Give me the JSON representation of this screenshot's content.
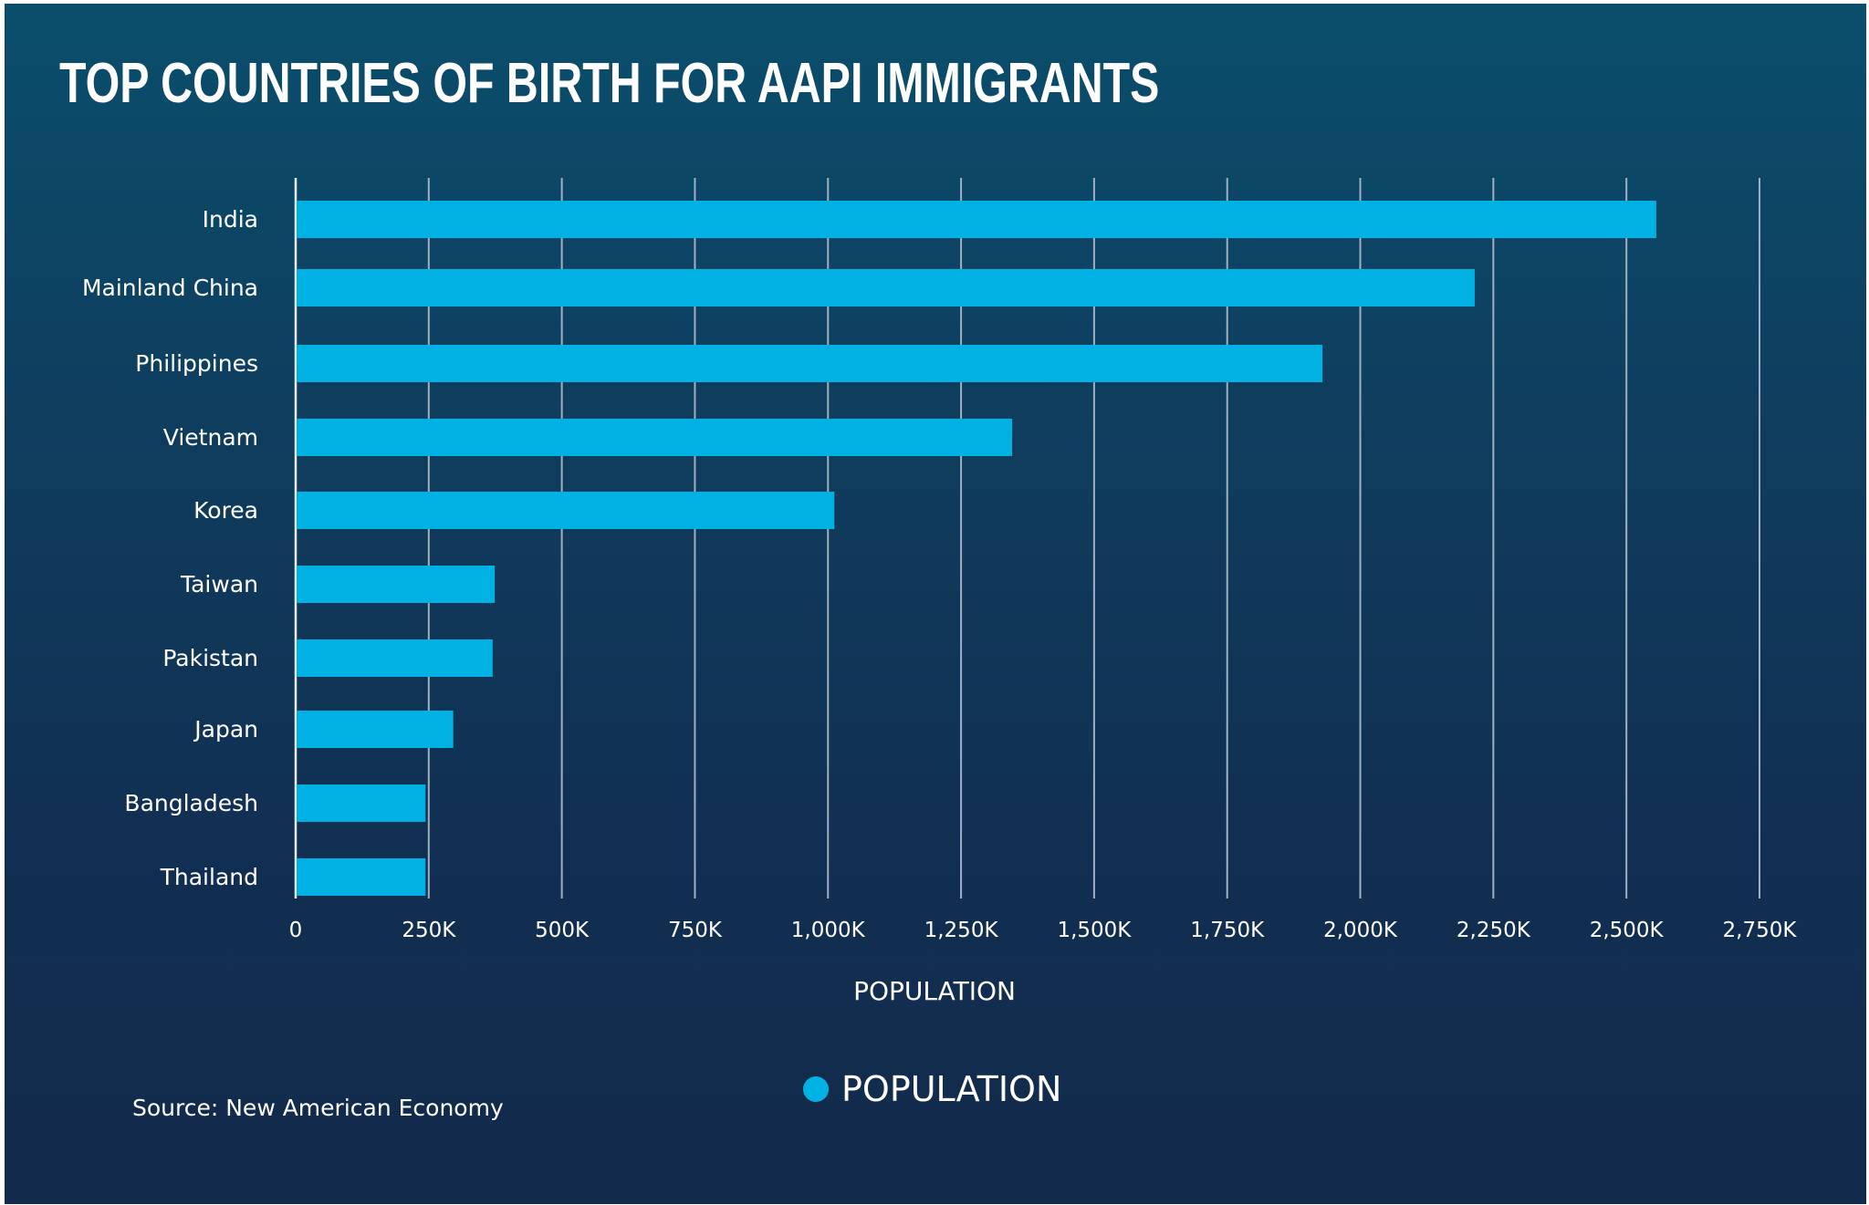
{
  "chart_data": {
    "type": "bar",
    "orientation": "horizontal",
    "title": "TOP COUNTRIES OF BIRTH FOR AAPI IMMIGRANTS",
    "categories": [
      "India",
      "Mainland China",
      "Philippines",
      "Vietnam",
      "Korea",
      "Taiwan",
      "Pakistan",
      "Japan",
      "Bangladesh",
      "Thailand"
    ],
    "series": [
      {
        "name": "POPULATION",
        "values": [
          2556000,
          2215000,
          1929000,
          1346000,
          1012000,
          374000,
          370000,
          296000,
          244000,
          244000
        ],
        "color": "#00b2e3"
      }
    ],
    "xlabel": "POPULATION",
    "ylabel": "",
    "xlim": [
      0,
      2750000
    ],
    "x_ticks": [
      "0",
      "250K",
      "500K",
      "750K",
      "1,000K",
      "1,250K",
      "1,500K",
      "1,750K",
      "2,000K",
      "2,250K",
      "2,500K",
      "2,750K"
    ],
    "grid": "vertical",
    "legend": "bottom-center",
    "source": "Source: New American Economy"
  }
}
